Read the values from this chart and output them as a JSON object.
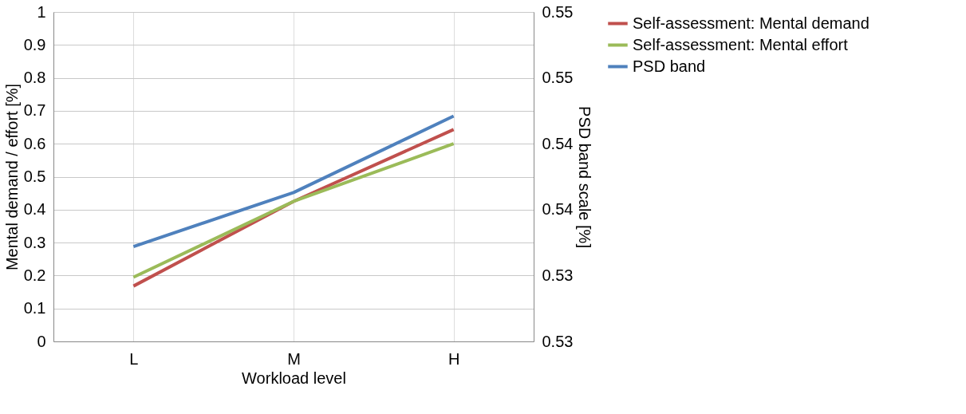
{
  "chart_data": {
    "type": "line",
    "xlabel": "Workload level",
    "ylabel": "Mental demand / effort [%]",
    "y2label": "PSD band scale [%]",
    "categories": [
      "L",
      "M",
      "H"
    ],
    "ylim": [
      0,
      1
    ],
    "yticks": [
      0,
      0.1,
      0.2,
      0.3,
      0.4,
      0.5,
      0.6,
      0.7,
      0.8,
      0.9,
      1
    ],
    "y2lim": [
      0.525,
      0.55
    ],
    "y2ticks": [
      {
        "value": 0.525,
        "label": "0.53"
      },
      {
        "value": 0.53,
        "label": "0.53"
      },
      {
        "value": 0.535,
        "label": "0.54"
      },
      {
        "value": 0.54,
        "label": "0.54"
      },
      {
        "value": 0.545,
        "label": "0.55"
      },
      {
        "value": 0.55,
        "label": "0.55"
      }
    ],
    "grid": true,
    "legend": "right",
    "marker": "none",
    "series": [
      {
        "name": "Self-assessment: Mental demand",
        "color": "#c0504d",
        "values": [
          0.168,
          0.425,
          0.643
        ]
      },
      {
        "name": "Self-assessment: Mental effort",
        "color": "#9bbb59",
        "values": [
          0.195,
          0.425,
          0.6
        ]
      },
      {
        "name": "PSD band",
        "color": "#4f81bd",
        "values": [
          0.5322,
          0.5363,
          0.5421
        ],
        "axis": "y2"
      }
    ]
  }
}
